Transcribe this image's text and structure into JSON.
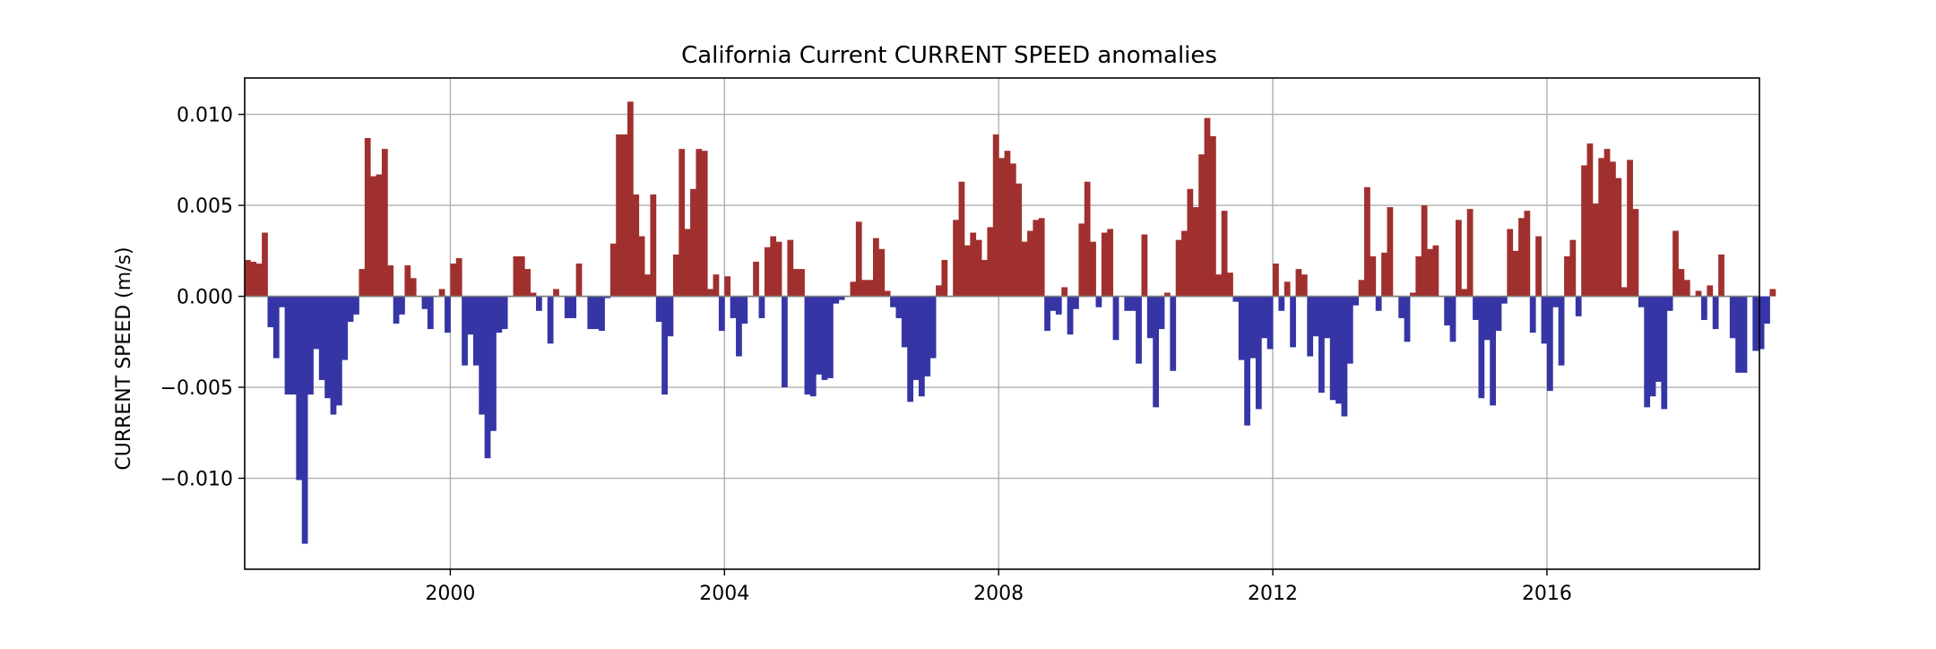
{
  "chart_data": {
    "type": "bar",
    "title": "California Current CURRENT SPEED anomalies",
    "xlabel": "",
    "ylabel": "CURRENT SPEED (m/s)",
    "xlim": [
      1997.0,
      2019.1
    ],
    "ylim": [
      -0.015,
      0.012
    ],
    "grid": true,
    "legend": "none",
    "x_ticks": [
      {
        "value": 2000,
        "label": "2000"
      },
      {
        "value": 2004,
        "label": "2004"
      },
      {
        "value": 2008,
        "label": "2008"
      },
      {
        "value": 2012,
        "label": "2012"
      },
      {
        "value": 2016,
        "label": "2016"
      }
    ],
    "y_ticks": [
      {
        "value": 0.01,
        "label": "0.010"
      },
      {
        "value": 0.005,
        "label": "0.005"
      },
      {
        "value": 0.0,
        "label": "0.000"
      },
      {
        "value": -0.005,
        "label": "−0.005"
      },
      {
        "value": -0.01,
        "label": "−0.010"
      }
    ],
    "colors": {
      "positive": "#a0302e",
      "negative": "#3535a5",
      "grid": "#b0b0b0",
      "zero_line": "#808080"
    },
    "series": [
      {
        "start": "1997-01",
        "step": "month",
        "values": [
          0.002,
          0.0019,
          0.0018,
          0.0035,
          -0.0017,
          -0.0034,
          -0.0006,
          -0.0054,
          -0.0054,
          -0.0101,
          -0.0136,
          -0.0054,
          -0.0029,
          -0.0046,
          -0.0056,
          -0.0065,
          -0.006,
          -0.0035,
          -0.0014,
          -0.001,
          0.0015,
          0.0087,
          0.0066,
          0.0067,
          0.0081,
          0.0017,
          -0.0015,
          -0.001,
          0.0017,
          0.001,
          0.0,
          -0.0007,
          -0.0018,
          0.0,
          0.0004,
          -0.002,
          0.0018,
          0.0021,
          -0.0038,
          -0.0021,
          -0.0038,
          -0.0065,
          -0.0089,
          -0.0074,
          -0.002,
          -0.0018,
          0.0,
          0.0022,
          0.0022,
          0.0015,
          0.0002,
          -0.0008,
          0.0,
          -0.0026,
          0.0004,
          0.0,
          -0.0012,
          -0.0012,
          0.0018,
          0.0,
          -0.0018,
          -0.0018,
          -0.0019,
          -0.0001,
          0.0029,
          0.0089,
          0.0089,
          0.0107,
          0.0056,
          0.0033,
          0.0012,
          0.0056,
          -0.0014,
          -0.0054,
          -0.0022,
          0.0023,
          0.0081,
          0.0037,
          0.0059,
          0.0081,
          0.008,
          0.0004,
          0.0012,
          -0.0019,
          0.0011,
          -0.0012,
          -0.0033,
          -0.0015,
          0.0,
          0.0019,
          -0.0012,
          0.0027,
          0.0033,
          0.003,
          -0.005,
          0.0031,
          0.0015,
          0.0015,
          -0.0054,
          -0.0055,
          -0.0043,
          -0.0046,
          -0.0045,
          -0.0004,
          -0.0002,
          0.0,
          0.0008,
          0.0041,
          0.0009,
          0.0009,
          0.0032,
          0.0026,
          0.0003,
          -0.0006,
          -0.0012,
          -0.0028,
          -0.0058,
          -0.0046,
          -0.0055,
          -0.0044,
          -0.0034,
          0.0006,
          0.002,
          0.0,
          0.0042,
          0.0063,
          0.0028,
          0.0035,
          0.0031,
          0.002,
          0.0038,
          0.0089,
          0.0076,
          0.008,
          0.0073,
          0.0062,
          0.003,
          0.0036,
          0.0042,
          0.0043,
          -0.0019,
          -0.0008,
          -0.001,
          0.0005,
          -0.0021,
          -0.0007,
          0.004,
          0.0063,
          0.003,
          -0.0006,
          0.0035,
          0.0037,
          -0.0024,
          0.0,
          -0.0008,
          -0.0008,
          -0.0037,
          0.0034,
          -0.0023,
          -0.0061,
          -0.0018,
          0.0002,
          -0.0041,
          0.0031,
          0.0036,
          0.0059,
          0.0049,
          0.0078,
          0.0098,
          0.0088,
          0.0012,
          0.0047,
          0.0013,
          -0.0003,
          -0.0035,
          -0.0071,
          -0.0034,
          -0.0062,
          -0.0023,
          -0.0029,
          0.0018,
          -0.0008,
          0.0008,
          -0.0028,
          0.0015,
          0.0012,
          -0.0033,
          -0.0022,
          -0.0053,
          -0.0023,
          -0.0057,
          -0.0059,
          -0.0066,
          -0.0037,
          -0.0005,
          0.0009,
          0.006,
          0.0022,
          -0.0008,
          0.0024,
          0.0049,
          0.0,
          -0.0012,
          -0.0025,
          0.0002,
          0.0022,
          0.005,
          0.0026,
          0.0028,
          0.0,
          -0.0016,
          -0.0025,
          0.0042,
          0.0004,
          0.0048,
          -0.0013,
          -0.0056,
          -0.0024,
          -0.006,
          -0.0019,
          -0.0004,
          0.0037,
          0.0025,
          0.0043,
          0.0047,
          -0.002,
          0.0033,
          -0.0026,
          -0.0052,
          -0.0006,
          -0.0038,
          0.0022,
          0.0031,
          -0.0011,
          0.0072,
          0.0084,
          0.0051,
          0.0076,
          0.0081,
          0.0074,
          0.0065,
          0.0005,
          0.0075,
          0.0048,
          -0.0006,
          -0.0061,
          -0.0055,
          -0.0047,
          -0.0062,
          -0.0008,
          0.0036,
          0.0015,
          0.0009,
          0.0,
          0.0003,
          -0.0013,
          0.0006,
          -0.0018,
          0.0023,
          0.0,
          -0.0023,
          -0.0042,
          -0.0042,
          0.0,
          -0.003,
          -0.0029,
          -0.0015,
          0.0004
        ]
      }
    ]
  }
}
